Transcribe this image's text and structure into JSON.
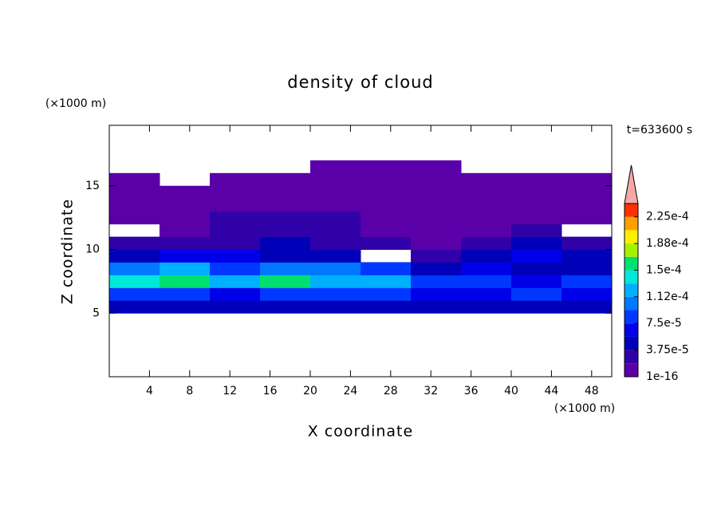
{
  "chart_data": {
    "type": "contour",
    "title": "density of cloud",
    "time_label": "t=633600 s",
    "x_label": "X coordinate",
    "y_label": "Z coordinate",
    "x_unit": "(×1000 m)",
    "y_unit": "(×1000 m)",
    "x": [
      2.5,
      7.5,
      12.5,
      17.5,
      22.5,
      27.5,
      32.5,
      37.5,
      42.5,
      47.5
    ],
    "y": [
      5.5,
      6.5,
      7.5,
      8.5,
      9.5,
      10.5,
      11.5,
      12.5,
      13.5,
      14.5,
      15.5,
      16.5
    ],
    "values": [
      [
        4e-05,
        4e-05,
        4e-05,
        4e-05,
        5e-05,
        4e-05,
        4e-05,
        4e-05,
        4e-05,
        4e-05
      ],
      [
        9e-05,
        8e-05,
        7e-05,
        9e-05,
        8e-05,
        8e-05,
        6e-05,
        7e-05,
        9e-05,
        7e-05
      ],
      [
        0.00014,
        0.00015,
        0.00012,
        0.00015,
        0.00013,
        0.00012,
        8e-05,
        9e-05,
        7e-05,
        9e-05
      ],
      [
        0.00011,
        0.00013,
        9e-05,
        0.0001,
        0.0001,
        8e-05,
        4e-05,
        6e-05,
        5e-05,
        4e-05
      ],
      [
        5e-05,
        6e-05,
        6e-05,
        5e-05,
        5e-05,
        null,
        3e-05,
        4e-05,
        6e-05,
        5e-05
      ],
      [
        2e-05,
        2e-05,
        3e-05,
        4e-05,
        3e-05,
        2e-05,
        1.5e-05,
        2e-05,
        4e-05,
        3e-05
      ],
      [
        null,
        1e-05,
        2.5e-05,
        2.5e-05,
        2e-05,
        1.5e-05,
        1e-05,
        1e-05,
        2e-05,
        null
      ],
      [
        1e-05,
        1.5e-05,
        2e-05,
        2e-05,
        2e-05,
        1.5e-05,
        1e-05,
        1e-05,
        1e-05,
        1e-05
      ],
      [
        1e-06,
        1e-06,
        1e-05,
        1e-05,
        1e-05,
        1e-05,
        1e-06,
        1e-06,
        1e-06,
        1e-06
      ],
      [
        1e-06,
        1e-06,
        1e-06,
        1e-06,
        1e-06,
        1e-06,
        1e-06,
        1e-06,
        1e-06,
        1e-06
      ],
      [
        1e-06,
        null,
        1e-06,
        1e-06,
        1e-06,
        1e-06,
        1e-06,
        1e-06,
        1e-06,
        1e-06
      ],
      [
        null,
        null,
        null,
        null,
        1e-06,
        1e-06,
        1e-06,
        null,
        null,
        null
      ]
    ],
    "xlim": [
      0,
      50
    ],
    "ylim": [
      0,
      19.75
    ],
    "xticks": [
      4,
      8,
      12,
      16,
      20,
      24,
      28,
      32,
      36,
      40,
      44,
      48
    ],
    "yticks": [
      5,
      10,
      15
    ],
    "levels": [
      1e-16,
      1.875e-05,
      3.75e-05,
      5.625e-05,
      7.5e-05,
      9.375e-05,
      0.0001125,
      0.00013125,
      0.00015,
      0.00016875,
      0.0001875,
      0.00020625,
      0.000225,
      0.00024375
    ],
    "colors": [
      "#5a00a8",
      "#3000a8",
      "#0000b8",
      "#0000e8",
      "#0038ff",
      "#0078ff",
      "#00b0ff",
      "#00e8d8",
      "#00e070",
      "#a8f000",
      "#fff000",
      "#ffa000",
      "#ff3000"
    ],
    "extend_color": "#f4a8a8",
    "colorbar_ticks": [
      {
        "value": 1e-16,
        "label": "1e-16"
      },
      {
        "value": 3.75e-05,
        "label": "3.75e-5"
      },
      {
        "value": 7.5e-05,
        "label": "7.5e-5"
      },
      {
        "value": 0.0001125,
        "label": "1.12e-4"
      },
      {
        "value": 0.00015,
        "label": "1.5e-4"
      },
      {
        "value": 0.0001875,
        "label": "1.88e-4"
      },
      {
        "value": 0.000225,
        "label": "2.25e-4"
      }
    ]
  }
}
